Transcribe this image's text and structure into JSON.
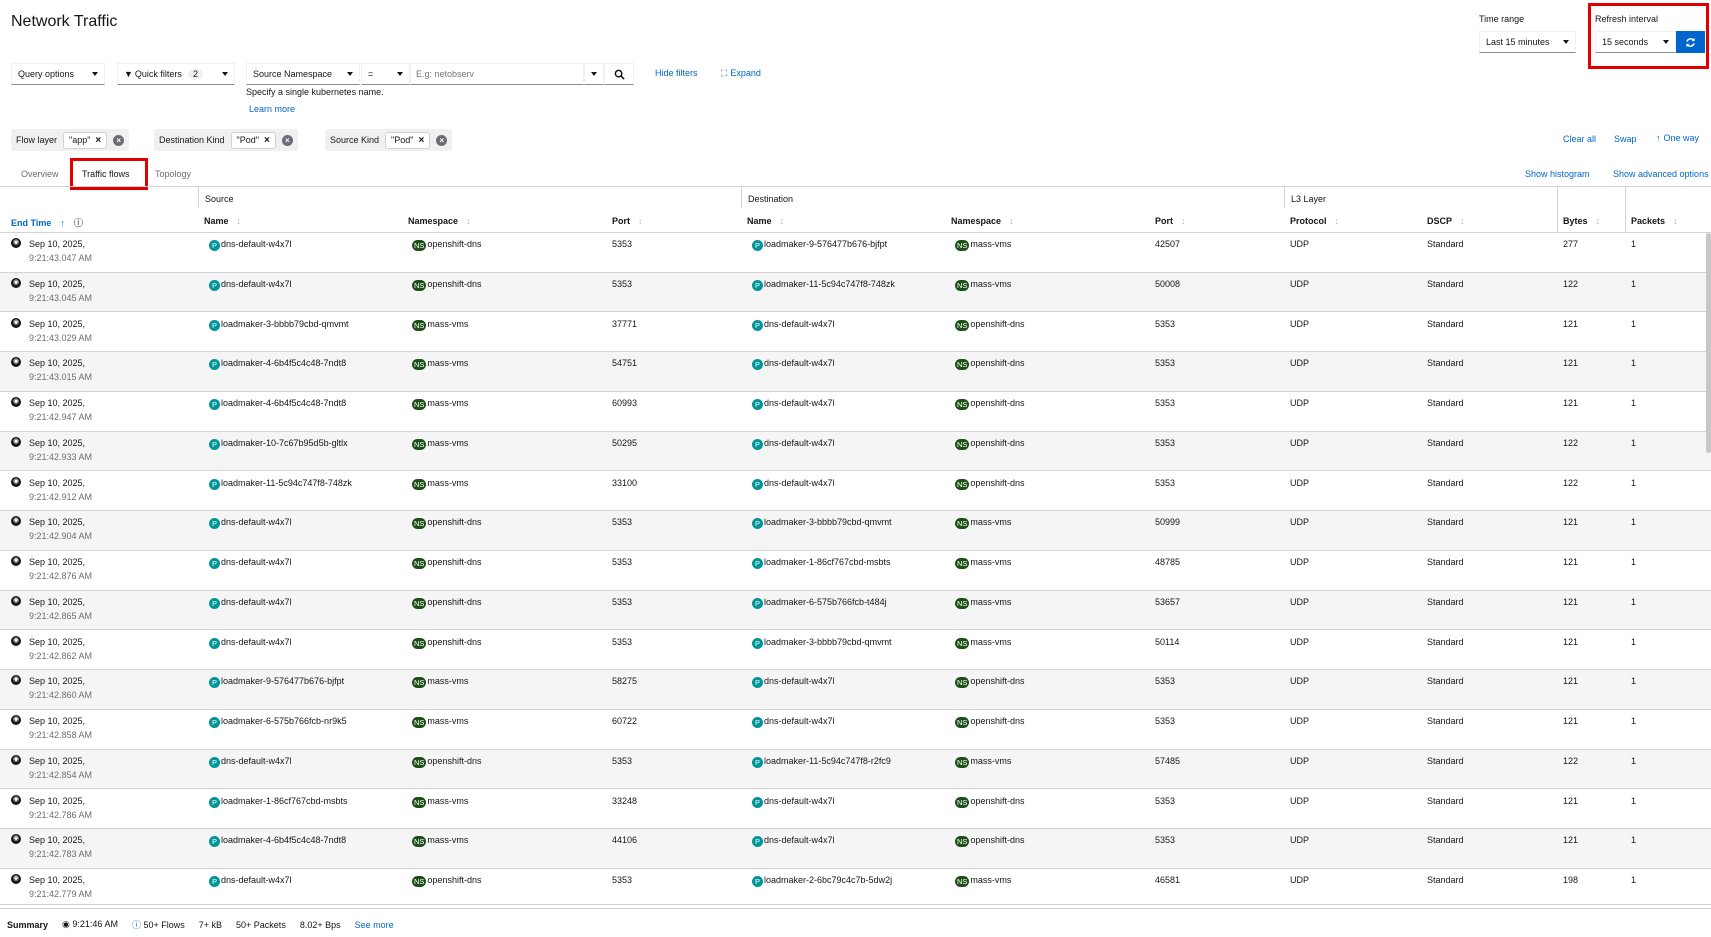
{
  "page_title": "Network Traffic",
  "time_range": {
    "label": "Time range",
    "value": "Last 15 minutes"
  },
  "refresh_interval": {
    "label": "Refresh interval",
    "value": "15 seconds"
  },
  "toolbar": {
    "query_options": "Query options",
    "quick_filters": "Quick filters",
    "quick_filters_count": "2",
    "filter_field": "Source Namespace",
    "filter_operator": "=",
    "filter_placeholder": "E.g: netobserv",
    "hide_filters": "Hide filters",
    "expand": "Expand",
    "helper_text": "Specify a single kubernetes name.",
    "learn_more": "Learn more"
  },
  "filters": [
    {
      "label": "Flow layer",
      "value": "\"app\""
    },
    {
      "label": "Destination Kind",
      "value": "\"Pod\""
    },
    {
      "label": "Source Kind",
      "value": "\"Pod\""
    }
  ],
  "filter_actions": {
    "clear_all": "Clear all",
    "swap": "Swap",
    "one_way": "One way"
  },
  "tabs": [
    "Overview",
    "Traffic flows",
    "Topology"
  ],
  "tab_actions": {
    "show_histogram": "Show histogram",
    "show_advanced": "Show advanced options"
  },
  "table": {
    "groups": {
      "source": "Source",
      "destination": "Destination",
      "l3": "L3 Layer"
    },
    "columns": {
      "end_time": "End Time",
      "src_name": "Name",
      "src_ns": "Namespace",
      "src_port": "Port",
      "dst_name": "Name",
      "dst_ns": "Namespace",
      "dst_port": "Port",
      "protocol": "Protocol",
      "dscp": "DSCP",
      "bytes": "Bytes",
      "packets": "Packets"
    },
    "rows": [
      {
        "date": "Sep 10, 2025,",
        "time": "9:21:43.047 AM",
        "src": "dns-default-w4x7l",
        "src_ns": "openshift-dns",
        "src_port": "5353",
        "dst": "loadmaker-9-576477b676-bjfpt",
        "dst_ns": "mass-vms",
        "dst_port": "42507",
        "proto": "UDP",
        "dscp": "Standard",
        "bytes": "277",
        "packets": "1"
      },
      {
        "date": "Sep 10, 2025,",
        "time": "9:21:43.045 AM",
        "src": "dns-default-w4x7l",
        "src_ns": "openshift-dns",
        "src_port": "5353",
        "dst": "loadmaker-11-5c94c747f8-748zk",
        "dst_ns": "mass-vms",
        "dst_port": "50008",
        "proto": "UDP",
        "dscp": "Standard",
        "bytes": "122",
        "packets": "1"
      },
      {
        "date": "Sep 10, 2025,",
        "time": "9:21:43.029 AM",
        "src": "loadmaker-3-bbbb79cbd-qmvmt",
        "src_ns": "mass-vms",
        "src_port": "37771",
        "dst": "dns-default-w4x7l",
        "dst_ns": "openshift-dns",
        "dst_port": "5353",
        "proto": "UDP",
        "dscp": "Standard",
        "bytes": "121",
        "packets": "1"
      },
      {
        "date": "Sep 10, 2025,",
        "time": "9:21:43.015 AM",
        "src": "loadmaker-4-6b4f5c4c48-7ndt8",
        "src_ns": "mass-vms",
        "src_port": "54751",
        "dst": "dns-default-w4x7l",
        "dst_ns": "openshift-dns",
        "dst_port": "5353",
        "proto": "UDP",
        "dscp": "Standard",
        "bytes": "121",
        "packets": "1"
      },
      {
        "date": "Sep 10, 2025,",
        "time": "9:21:42.947 AM",
        "src": "loadmaker-4-6b4f5c4c48-7ndt8",
        "src_ns": "mass-vms",
        "src_port": "60993",
        "dst": "dns-default-w4x7l",
        "dst_ns": "openshift-dns",
        "dst_port": "5353",
        "proto": "UDP",
        "dscp": "Standard",
        "bytes": "121",
        "packets": "1"
      },
      {
        "date": "Sep 10, 2025,",
        "time": "9:21:42.933 AM",
        "src": "loadmaker-10-7c67b95d5b-gltlx",
        "src_ns": "mass-vms",
        "src_port": "50295",
        "dst": "dns-default-w4x7l",
        "dst_ns": "openshift-dns",
        "dst_port": "5353",
        "proto": "UDP",
        "dscp": "Standard",
        "bytes": "122",
        "packets": "1"
      },
      {
        "date": "Sep 10, 2025,",
        "time": "9:21:42.912 AM",
        "src": "loadmaker-11-5c94c747f8-748zk",
        "src_ns": "mass-vms",
        "src_port": "33100",
        "dst": "dns-default-w4x7l",
        "dst_ns": "openshift-dns",
        "dst_port": "5353",
        "proto": "UDP",
        "dscp": "Standard",
        "bytes": "122",
        "packets": "1"
      },
      {
        "date": "Sep 10, 2025,",
        "time": "9:21:42.904 AM",
        "src": "dns-default-w4x7l",
        "src_ns": "openshift-dns",
        "src_port": "5353",
        "dst": "loadmaker-3-bbbb79cbd-qmvmt",
        "dst_ns": "mass-vms",
        "dst_port": "50999",
        "proto": "UDP",
        "dscp": "Standard",
        "bytes": "121",
        "packets": "1"
      },
      {
        "date": "Sep 10, 2025,",
        "time": "9:21:42.876 AM",
        "src": "dns-default-w4x7l",
        "src_ns": "openshift-dns",
        "src_port": "5353",
        "dst": "loadmaker-1-86cf767cbd-msbts",
        "dst_ns": "mass-vms",
        "dst_port": "48785",
        "proto": "UDP",
        "dscp": "Standard",
        "bytes": "121",
        "packets": "1"
      },
      {
        "date": "Sep 10, 2025,",
        "time": "9:21:42.865 AM",
        "src": "dns-default-w4x7l",
        "src_ns": "openshift-dns",
        "src_port": "5353",
        "dst": "loadmaker-6-575b766fcb-t484j",
        "dst_ns": "mass-vms",
        "dst_port": "53657",
        "proto": "UDP",
        "dscp": "Standard",
        "bytes": "121",
        "packets": "1"
      },
      {
        "date": "Sep 10, 2025,",
        "time": "9:21:42.862 AM",
        "src": "dns-default-w4x7l",
        "src_ns": "openshift-dns",
        "src_port": "5353",
        "dst": "loadmaker-3-bbbb79cbd-qmvmt",
        "dst_ns": "mass-vms",
        "dst_port": "50114",
        "proto": "UDP",
        "dscp": "Standard",
        "bytes": "121",
        "packets": "1"
      },
      {
        "date": "Sep 10, 2025,",
        "time": "9:21:42.860 AM",
        "src": "loadmaker-9-576477b676-bjfpt",
        "src_ns": "mass-vms",
        "src_port": "58275",
        "dst": "dns-default-w4x7l",
        "dst_ns": "openshift-dns",
        "dst_port": "5353",
        "proto": "UDP",
        "dscp": "Standard",
        "bytes": "121",
        "packets": "1"
      },
      {
        "date": "Sep 10, 2025,",
        "time": "9:21:42.858 AM",
        "src": "loadmaker-6-575b766fcb-nr9k5",
        "src_ns": "mass-vms",
        "src_port": "60722",
        "dst": "dns-default-w4x7l",
        "dst_ns": "openshift-dns",
        "dst_port": "5353",
        "proto": "UDP",
        "dscp": "Standard",
        "bytes": "121",
        "packets": "1"
      },
      {
        "date": "Sep 10, 2025,",
        "time": "9:21:42.854 AM",
        "src": "dns-default-w4x7l",
        "src_ns": "openshift-dns",
        "src_port": "5353",
        "dst": "loadmaker-11-5c94c747f8-r2fc9",
        "dst_ns": "mass-vms",
        "dst_port": "57485",
        "proto": "UDP",
        "dscp": "Standard",
        "bytes": "122",
        "packets": "1"
      },
      {
        "date": "Sep 10, 2025,",
        "time": "9:21:42.786 AM",
        "src": "loadmaker-1-86cf767cbd-msbts",
        "src_ns": "mass-vms",
        "src_port": "33248",
        "dst": "dns-default-w4x7l",
        "dst_ns": "openshift-dns",
        "dst_port": "5353",
        "proto": "UDP",
        "dscp": "Standard",
        "bytes": "121",
        "packets": "1"
      },
      {
        "date": "Sep 10, 2025,",
        "time": "9:21:42.783 AM",
        "src": "loadmaker-4-6b4f5c4c48-7ndt8",
        "src_ns": "mass-vms",
        "src_port": "44106",
        "dst": "dns-default-w4x7l",
        "dst_ns": "openshift-dns",
        "dst_port": "5353",
        "proto": "UDP",
        "dscp": "Standard",
        "bytes": "121",
        "packets": "1"
      },
      {
        "date": "Sep 10, 2025,",
        "time": "9:21:42.779 AM",
        "src": "dns-default-w4x7l",
        "src_ns": "openshift-dns",
        "src_port": "5353",
        "dst": "loadmaker-2-6bc79c4c7b-5dw2j",
        "dst_ns": "mass-vms",
        "dst_port": "46581",
        "proto": "UDP",
        "dscp": "Standard",
        "bytes": "198",
        "packets": "1"
      }
    ]
  },
  "summary": {
    "label": "Summary",
    "time": "9:21:46 AM",
    "flows": "50+ Flows",
    "kb": "7+ kB",
    "packets": "50+ Packets",
    "bps": "8.02+ Bps",
    "see_more": "See more"
  },
  "colors": {
    "accent": "#0066cc",
    "highlight": "#e00000",
    "pod_badge": "#009596",
    "ns_badge": "#1e4f18"
  }
}
